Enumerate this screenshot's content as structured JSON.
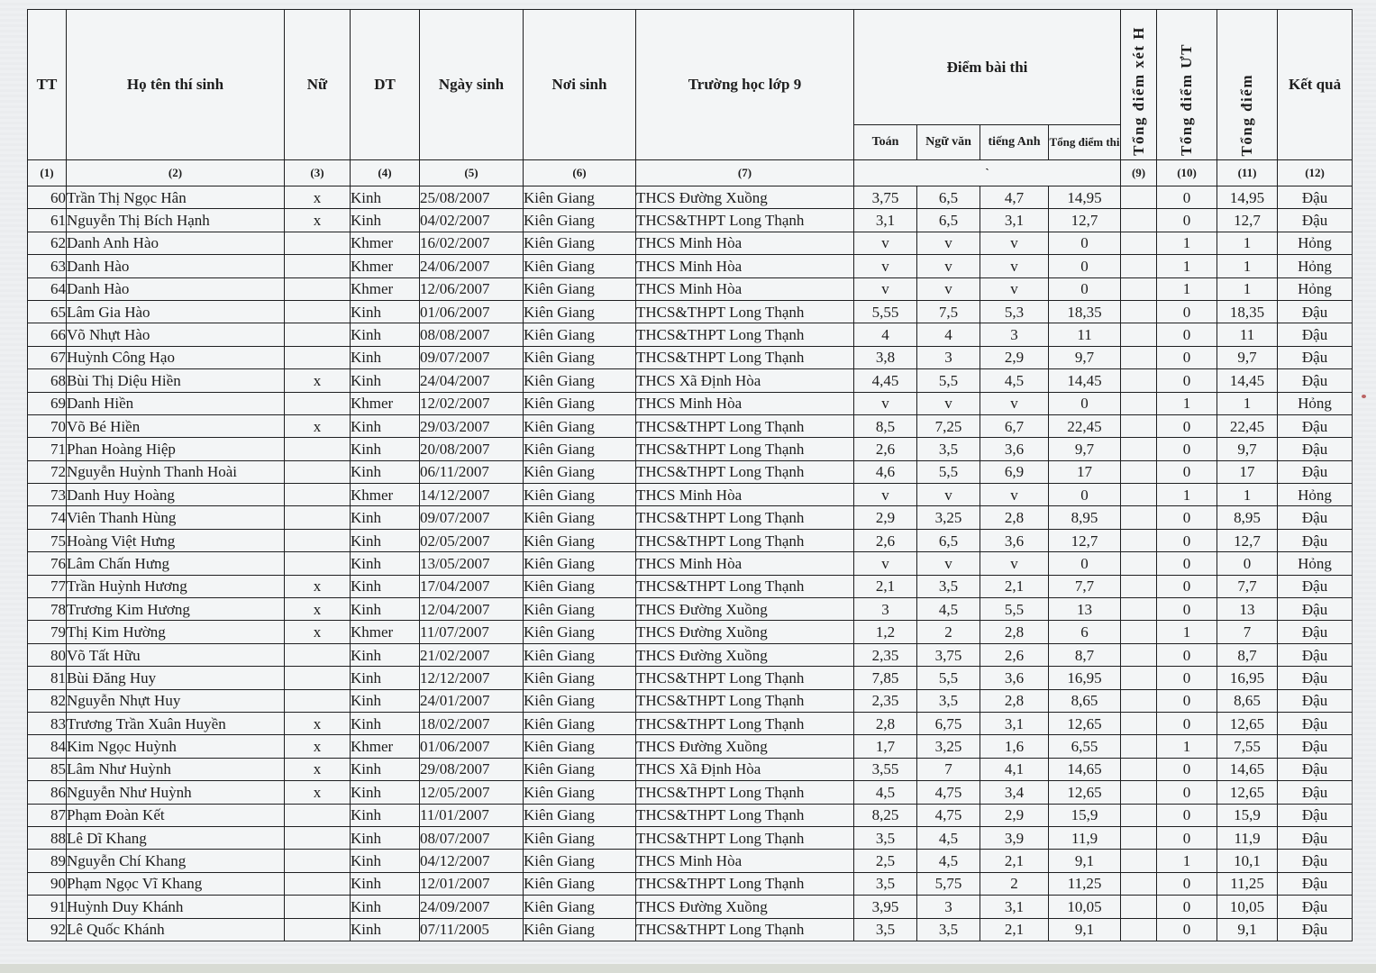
{
  "page": {
    "background_color": "#edeff1",
    "paper_color": "#f3f5f6",
    "border_color": "#1e1f21",
    "artifact_red_speck_color": "#b24a4a"
  },
  "table": {
    "headers": {
      "tt": "TT",
      "name": "Họ tên thí sinh",
      "female": "Nữ",
      "ethnicity": "DT",
      "dob": "Ngày sinh",
      "pob": "Nơi sinh",
      "school": "Trường học lớp 9",
      "score_group": "Điểm bài thi",
      "sub": [
        "Toán",
        "Ngữ văn",
        "tiếng Anh",
        "Tổng điểm thi"
      ],
      "total_xet_h": "Tổng điểm xét H",
      "total_ut": "Tổng điểm ƯT",
      "total": "Tổng điểm",
      "result": "Kết quả"
    },
    "numbering": [
      "(1)",
      "(2)",
      "(3)",
      "(4)",
      "(5)",
      "(6)",
      "(7)",
      "`",
      "(9)",
      "(10)",
      "(11)",
      "(12)"
    ],
    "rows": [
      [
        "60",
        "Trần Thị Ngọc Hân",
        "x",
        "Kinh",
        "25/08/2007",
        "Kiên Giang",
        "THCS Đường Xuồng",
        "3,75",
        "6,5",
        "4,7",
        "14,95",
        "",
        "0",
        "14,95",
        "Đậu"
      ],
      [
        "61",
        "Nguyễn Thị Bích Hạnh",
        "x",
        "Kinh",
        "04/02/2007",
        "Kiên Giang",
        "THCS&THPT Long Thạnh",
        "3,1",
        "6,5",
        "3,1",
        "12,7",
        "",
        "0",
        "12,7",
        "Đậu"
      ],
      [
        "62",
        "Danh Anh Hào",
        "",
        "Khmer",
        "16/02/2007",
        "Kiên Giang",
        "THCS Minh Hòa",
        "v",
        "v",
        "v",
        "0",
        "",
        "1",
        "1",
        "Hỏng"
      ],
      [
        "63",
        "Danh Hào",
        "",
        "Khmer",
        "24/06/2007",
        "Kiên Giang",
        "THCS Minh Hòa",
        "v",
        "v",
        "v",
        "0",
        "",
        "1",
        "1",
        "Hỏng"
      ],
      [
        "64",
        "Danh Hào",
        "",
        "Khmer",
        "12/06/2007",
        "Kiên Giang",
        "THCS Minh Hòa",
        "v",
        "v",
        "v",
        "0",
        "",
        "1",
        "1",
        "Hỏng"
      ],
      [
        "65",
        "Lâm Gia Hào",
        "",
        "Kinh",
        "01/06/2007",
        "Kiên Giang",
        "THCS&THPT Long Thạnh",
        "5,55",
        "7,5",
        "5,3",
        "18,35",
        "",
        "0",
        "18,35",
        "Đậu"
      ],
      [
        "66",
        "Võ Nhựt Hào",
        "",
        "Kinh",
        "08/08/2007",
        "Kiên Giang",
        "THCS&THPT Long Thạnh",
        "4",
        "4",
        "3",
        "11",
        "",
        "0",
        "11",
        "Đậu"
      ],
      [
        "67",
        "Huỳnh Công Hạo",
        "",
        "Kinh",
        "09/07/2007",
        "Kiên Giang",
        "THCS&THPT Long Thạnh",
        "3,8",
        "3",
        "2,9",
        "9,7",
        "",
        "0",
        "9,7",
        "Đậu"
      ],
      [
        "68",
        "Bùi Thị Diệu Hiền",
        "x",
        "Kinh",
        "24/04/2007",
        "Kiên Giang",
        "THCS Xã Định Hòa",
        "4,45",
        "5,5",
        "4,5",
        "14,45",
        "",
        "0",
        "14,45",
        "Đậu"
      ],
      [
        "69",
        "Danh Hiền",
        "",
        "Khmer",
        "12/02/2007",
        "Kiên Giang",
        "THCS Minh Hòa",
        "v",
        "v",
        "v",
        "0",
        "",
        "1",
        "1",
        "Hỏng"
      ],
      [
        "70",
        "Võ Bé Hiền",
        "x",
        "Kinh",
        "29/03/2007",
        "Kiên Giang",
        "THCS&THPT Long Thạnh",
        "8,5",
        "7,25",
        "6,7",
        "22,45",
        "",
        "0",
        "22,45",
        "Đậu"
      ],
      [
        "71",
        "Phan Hoàng Hiệp",
        "",
        "Kinh",
        "20/08/2007",
        "Kiên Giang",
        "THCS&THPT Long Thạnh",
        "2,6",
        "3,5",
        "3,6",
        "9,7",
        "",
        "0",
        "9,7",
        "Đậu"
      ],
      [
        "72",
        "Nguyễn Huỳnh Thanh Hoài",
        "",
        "Kinh",
        "06/11/2007",
        "Kiên Giang",
        "THCS&THPT Long Thạnh",
        "4,6",
        "5,5",
        "6,9",
        "17",
        "",
        "0",
        "17",
        "Đậu"
      ],
      [
        "73",
        "Danh Huy Hoàng",
        "",
        "Khmer",
        "14/12/2007",
        "Kiên Giang",
        "THCS Minh Hòa",
        "v",
        "v",
        "v",
        "0",
        "",
        "1",
        "1",
        "Hỏng"
      ],
      [
        "74",
        "Viên Thanh Hùng",
        "",
        "Kinh",
        "09/07/2007",
        "Kiên Giang",
        "THCS&THPT Long Thạnh",
        "2,9",
        "3,25",
        "2,8",
        "8,95",
        "",
        "0",
        "8,95",
        "Đậu"
      ],
      [
        "75",
        "Hoàng Việt Hưng",
        "",
        "Kinh",
        "02/05/2007",
        "Kiên Giang",
        "THCS&THPT Long Thạnh",
        "2,6",
        "6,5",
        "3,6",
        "12,7",
        "",
        "0",
        "12,7",
        "Đậu"
      ],
      [
        "76",
        "Lâm Chấn Hưng",
        "",
        "Kinh",
        "13/05/2007",
        "Kiên Giang",
        "THCS Minh Hòa",
        "v",
        "v",
        "v",
        "0",
        "",
        "0",
        "0",
        "Hỏng"
      ],
      [
        "77",
        "Trần Huỳnh Hương",
        "x",
        "Kinh",
        "17/04/2007",
        "Kiên Giang",
        "THCS&THPT Long Thạnh",
        "2,1",
        "3,5",
        "2,1",
        "7,7",
        "",
        "0",
        "7,7",
        "Đậu"
      ],
      [
        "78",
        "Trương Kim Hương",
        "x",
        "Kinh",
        "12/04/2007",
        "Kiên Giang",
        "THCS Đường Xuồng",
        "3",
        "4,5",
        "5,5",
        "13",
        "",
        "0",
        "13",
        "Đậu"
      ],
      [
        "79",
        "Thị Kim Hường",
        "x",
        "Khmer",
        "11/07/2007",
        "Kiên Giang",
        "THCS Đường Xuồng",
        "1,2",
        "2",
        "2,8",
        "6",
        "",
        "1",
        "7",
        "Đậu"
      ],
      [
        "80",
        "Võ Tất Hữu",
        "",
        "Kinh",
        "21/02/2007",
        "Kiên Giang",
        "THCS Đường Xuồng",
        "2,35",
        "3,75",
        "2,6",
        "8,7",
        "",
        "0",
        "8,7",
        "Đậu"
      ],
      [
        "81",
        "Bùi Đăng Huy",
        "",
        "Kinh",
        "12/12/2007",
        "Kiên Giang",
        "THCS&THPT Long Thạnh",
        "7,85",
        "5,5",
        "3,6",
        "16,95",
        "",
        "0",
        "16,95",
        "Đậu"
      ],
      [
        "82",
        "Nguyễn Nhựt Huy",
        "",
        "Kinh",
        "24/01/2007",
        "Kiên Giang",
        "THCS&THPT Long Thạnh",
        "2,35",
        "3,5",
        "2,8",
        "8,65",
        "",
        "0",
        "8,65",
        "Đậu"
      ],
      [
        "83",
        "Trương Trần Xuân Huyền",
        "x",
        "Kinh",
        "18/02/2007",
        "Kiên Giang",
        "THCS&THPT Long Thạnh",
        "2,8",
        "6,75",
        "3,1",
        "12,65",
        "",
        "0",
        "12,65",
        "Đậu"
      ],
      [
        "84",
        "Kim Ngọc Huỳnh",
        "x",
        "Khmer",
        "01/06/2007",
        "Kiên Giang",
        "THCS Đường Xuồng",
        "1,7",
        "3,25",
        "1,6",
        "6,55",
        "",
        "1",
        "7,55",
        "Đậu"
      ],
      [
        "85",
        "Lâm Như Huỳnh",
        "x",
        "Kinh",
        "29/08/2007",
        "Kiên Giang",
        "THCS Xã Định Hòa",
        "3,55",
        "7",
        "4,1",
        "14,65",
        "",
        "0",
        "14,65",
        "Đậu"
      ],
      [
        "86",
        "Nguyễn Như Huỳnh",
        "x",
        "Kinh",
        "12/05/2007",
        "Kiên Giang",
        "THCS&THPT Long Thạnh",
        "4,5",
        "4,75",
        "3,4",
        "12,65",
        "",
        "0",
        "12,65",
        "Đậu"
      ],
      [
        "87",
        "Phạm Đoàn Kết",
        "",
        "Kinh",
        "11/01/2007",
        "Kiên Giang",
        "THCS&THPT Long Thạnh",
        "8,25",
        "4,75",
        "2,9",
        "15,9",
        "",
        "0",
        "15,9",
        "Đậu"
      ],
      [
        "88",
        "Lê Dĩ Khang",
        "",
        "Kinh",
        "08/07/2007",
        "Kiên Giang",
        "THCS&THPT Long Thạnh",
        "3,5",
        "4,5",
        "3,9",
        "11,9",
        "",
        "0",
        "11,9",
        "Đậu"
      ],
      [
        "89",
        "Nguyễn Chí Khang",
        "",
        "Kinh",
        "04/12/2007",
        "Kiên Giang",
        "THCS Minh Hòa",
        "2,5",
        "4,5",
        "2,1",
        "9,1",
        "",
        "1",
        "10,1",
        "Đậu"
      ],
      [
        "90",
        "Phạm Ngọc Vĩ Khang",
        "",
        "Kinh",
        "12/01/2007",
        "Kiên Giang",
        "THCS&THPT Long Thạnh",
        "3,5",
        "5,75",
        "2",
        "11,25",
        "",
        "0",
        "11,25",
        "Đậu"
      ],
      [
        "91",
        "Huỳnh Duy Khánh",
        "",
        "Kinh",
        "24/09/2007",
        "Kiên Giang",
        "THCS Đường Xuồng",
        "3,95",
        "3",
        "3,1",
        "10,05",
        "",
        "0",
        "10,05",
        "Đậu"
      ],
      [
        "92",
        "Lê Quốc Khánh",
        "",
        "Kinh",
        "07/11/2005",
        "Kiên Giang",
        "THCS&THPT Long Thạnh",
        "3,5",
        "3,5",
        "2,1",
        "9,1",
        "",
        "0",
        "9,1",
        "Đậu"
      ]
    ]
  }
}
